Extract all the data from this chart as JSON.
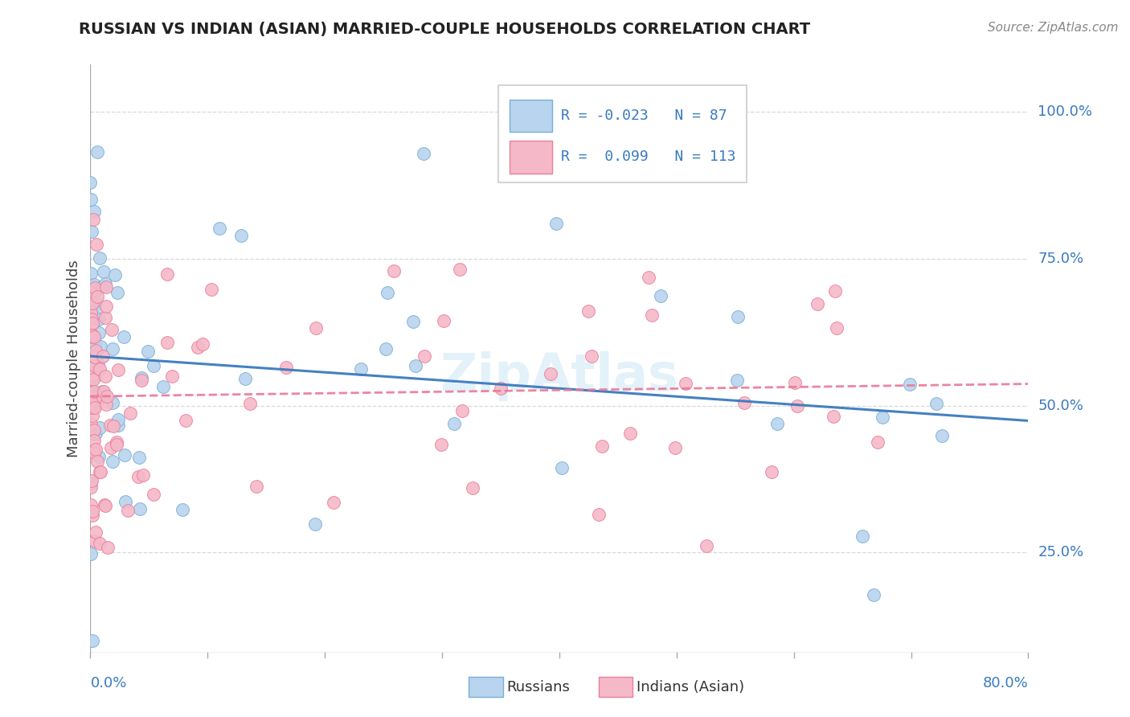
{
  "title": "RUSSIAN VS INDIAN (ASIAN) MARRIED-COUPLE HOUSEHOLDS CORRELATION CHART",
  "source": "Source: ZipAtlas.com",
  "ylabel": "Married-couple Households",
  "ytick_labels": [
    "25.0%",
    "50.0%",
    "75.0%",
    "100.0%"
  ],
  "ytick_values": [
    0.25,
    0.5,
    0.75,
    1.0
  ],
  "xmin": 0.0,
  "xmax": 0.8,
  "ymin": 0.08,
  "ymax": 1.08,
  "legend_russian_R": "-0.023",
  "legend_russian_N": "87",
  "legend_indian_R": "0.099",
  "legend_indian_N": "113",
  "color_russian_fill": "#b8d4ee",
  "color_russian_edge": "#7aaed6",
  "color_indian_fill": "#f5b8c8",
  "color_indian_edge": "#e8809a",
  "trendline_russian_color": "#3a7abf",
  "trendline_indian_color": "#e87898",
  "watermark_color": "#c8e4f5",
  "title_color": "#222222",
  "axis_label_color": "#3a7abf",
  "ylabel_color": "#444444",
  "grid_color": "#d8d8d8",
  "source_color": "#888888"
}
